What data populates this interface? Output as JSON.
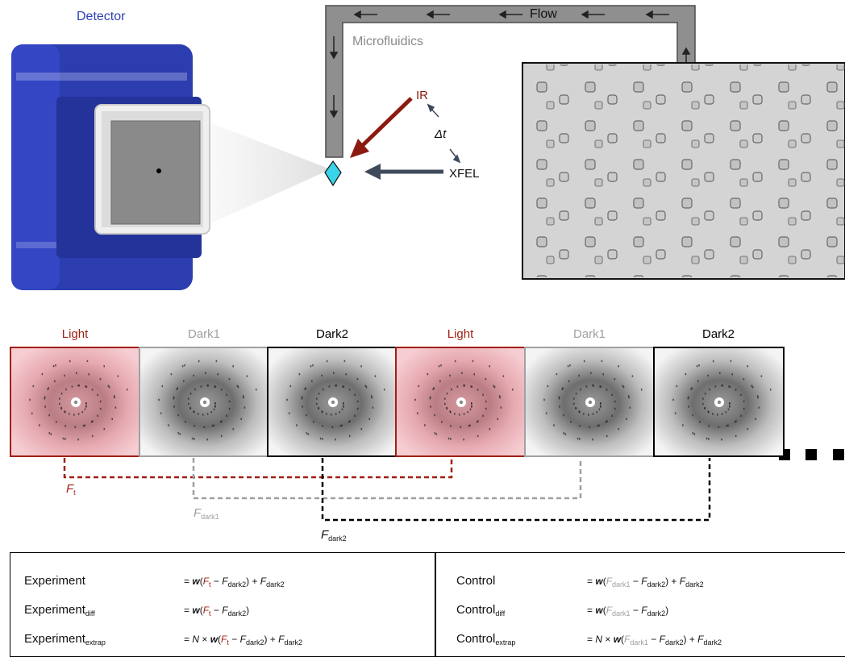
{
  "top": {
    "detector_label": "Detector",
    "flow_label": "Flow",
    "microfluidics_label": "Microfluidics",
    "ir_label": "IR",
    "delta_t_label": "Δt",
    "xfel_label": "XFEL"
  },
  "frames": [
    {
      "label": "Light",
      "kind": "light"
    },
    {
      "label": "Dark1",
      "kind": "dark1"
    },
    {
      "label": "Dark2",
      "kind": "dark2"
    },
    {
      "label": "Light",
      "kind": "light"
    },
    {
      "label": "Dark1",
      "kind": "dark1"
    },
    {
      "label": "Dark2",
      "kind": "dark2"
    }
  ],
  "pairings": {
    "ft": {
      "symbol": "F",
      "sub": "t"
    },
    "fdark1": {
      "symbol": "F",
      "sub": "dark1"
    },
    "fdark2": {
      "symbol": "F",
      "sub": "dark2"
    }
  },
  "equations": {
    "left": [
      {
        "name": "Experiment",
        "name_sub": ""
      },
      {
        "name": "Experiment",
        "name_sub": "diff"
      },
      {
        "name": "Experiment",
        "name_sub": "extrap"
      }
    ],
    "right": [
      {
        "name": "Control",
        "name_sub": ""
      },
      {
        "name": "Control",
        "name_sub": "diff"
      },
      {
        "name": "Control",
        "name_sub": "extrap"
      }
    ],
    "tokens": {
      "eq": "= ",
      "w": "w",
      "N": "N",
      "times": " × ",
      "minus": " − ",
      "plus": ") + ",
      "open": "(",
      "close": ")",
      "F": "F",
      "t": "t",
      "dark1": "dark1",
      "dark2": "dark2"
    }
  },
  "colors": {
    "light": "#a11f12",
    "dark1": "#a0a0a0",
    "dark2": "#000000",
    "detector_blue": "#2d3fb5",
    "xfel_arrow": "#3d4a5c",
    "diamond": "#39d3ea"
  }
}
